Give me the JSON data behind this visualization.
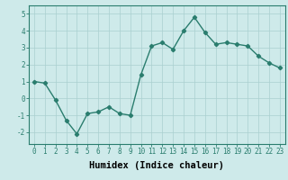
{
  "x": [
    0,
    1,
    2,
    3,
    4,
    5,
    6,
    7,
    8,
    9,
    10,
    11,
    12,
    13,
    14,
    15,
    16,
    17,
    18,
    19,
    20,
    21,
    22,
    23
  ],
  "y": [
    1.0,
    0.9,
    -0.1,
    -1.3,
    -2.1,
    -0.9,
    -0.8,
    -0.5,
    -0.9,
    -1.0,
    1.4,
    3.1,
    3.3,
    2.9,
    4.0,
    4.8,
    3.9,
    3.2,
    3.3,
    3.2,
    3.1,
    2.5,
    2.1,
    1.8
  ],
  "line_color": "#2a7d6e",
  "marker": "D",
  "marker_size": 2.2,
  "linewidth": 1.0,
  "bg_color": "#ceeaea",
  "grid_color": "#aacfcf",
  "xlabel": "Humidex (Indice chaleur)",
  "ylabel": "",
  "xlim": [
    -0.5,
    23.5
  ],
  "ylim": [
    -2.7,
    5.5
  ],
  "yticks": [
    -2,
    -1,
    0,
    1,
    2,
    3,
    4,
    5
  ],
  "xticks": [
    0,
    1,
    2,
    3,
    4,
    5,
    6,
    7,
    8,
    9,
    10,
    11,
    12,
    13,
    14,
    15,
    16,
    17,
    18,
    19,
    20,
    21,
    22,
    23
  ],
  "tick_fontsize": 5.5,
  "xlabel_fontsize": 7.5
}
